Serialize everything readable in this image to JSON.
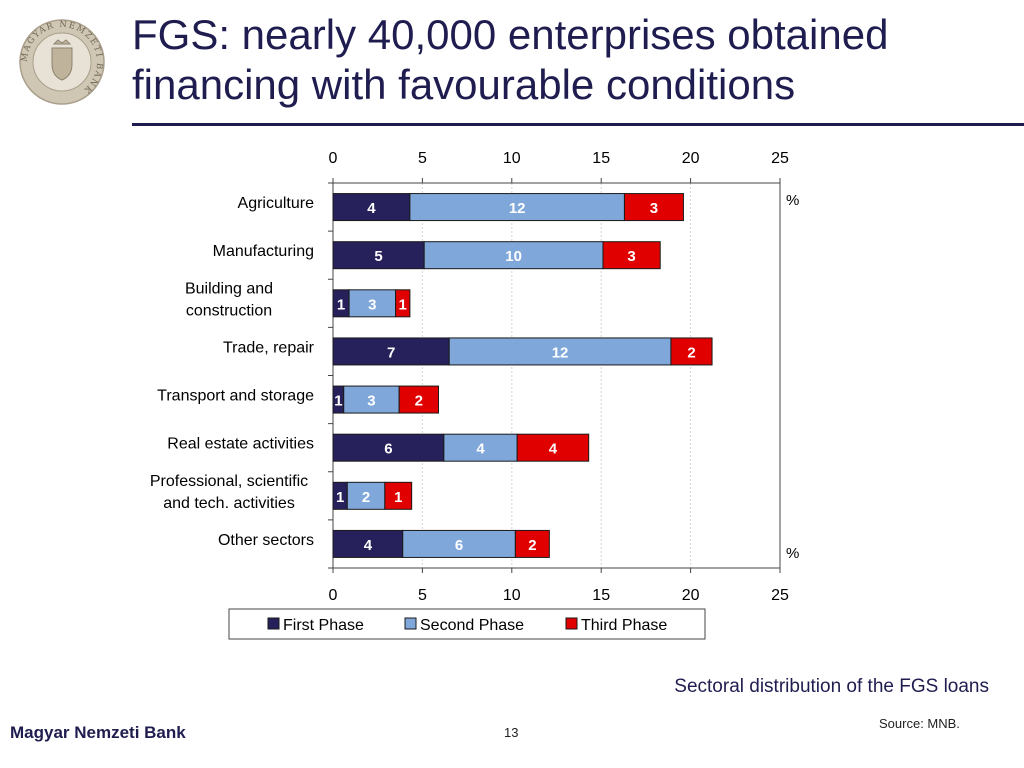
{
  "header": {
    "title": "FGS: nearly 40,000 enterprises obtained financing with favourable conditions",
    "logo_text": "MAGYAR NEMZETI BANK"
  },
  "chart_data": {
    "type": "bar",
    "orientation": "horizontal",
    "stacked": true,
    "categories": [
      "Agriculture",
      "Manufacturing",
      "Building and construction",
      "Trade, repair",
      "Transport and storage",
      "Real estate activities",
      "Professional, scientific and tech. activities",
      "Other sectors"
    ],
    "series": [
      {
        "name": "First Phase",
        "color": "#26215a",
        "values": [
          4.3,
          5.1,
          0.9,
          6.5,
          0.6,
          6.2,
          0.8,
          3.9
        ],
        "labels": [
          "4",
          "5",
          "1",
          "7",
          "1",
          "6",
          "1",
          "4"
        ]
      },
      {
        "name": "Second Phase",
        "color": "#7fa7d9",
        "values": [
          12.0,
          10.0,
          2.6,
          12.4,
          3.1,
          4.1,
          2.1,
          6.3
        ],
        "labels": [
          "12",
          "10",
          "3",
          "12",
          "3",
          "4",
          "2",
          "6"
        ]
      },
      {
        "name": "Third Phase",
        "color": "#e00000",
        "values": [
          3.3,
          3.2,
          0.8,
          2.3,
          2.2,
          4.0,
          1.5,
          1.9
        ],
        "labels": [
          "3",
          "3",
          "1",
          "2",
          "2",
          "4",
          "1",
          "2"
        ]
      }
    ],
    "xlim": [
      0,
      25
    ],
    "xticks": [
      0,
      5,
      10,
      15,
      20,
      25
    ],
    "unit_label": "%",
    "grid": true,
    "legend_position": "bottom"
  },
  "caption": "Sectoral distribution of the FGS loans",
  "source": "Source: MNB.",
  "footer": {
    "bank_name": "Magyar Nemzeti Bank",
    "page_number": "13"
  }
}
